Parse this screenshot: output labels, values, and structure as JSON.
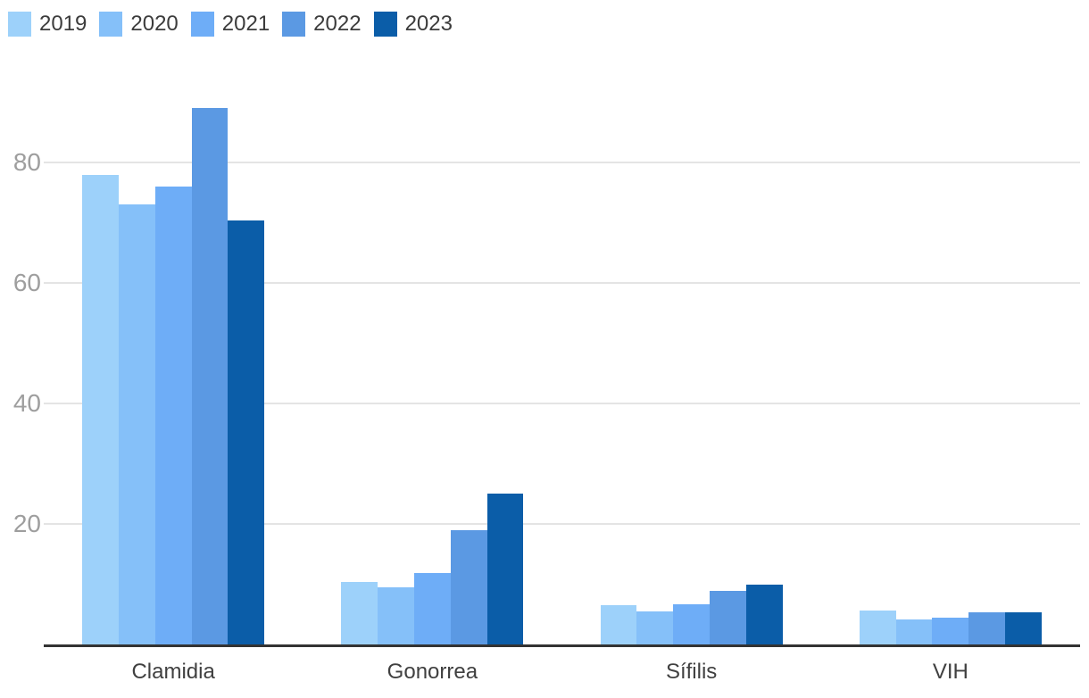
{
  "chart_data": {
    "type": "bar",
    "title": "",
    "xlabel": "",
    "ylabel": "",
    "categories": [
      "Clamidia",
      "Gonorrea",
      "Sífilis",
      "VIH"
    ],
    "series": [
      {
        "name": "2019",
        "color": "#9dd1fa",
        "values": [
          78,
          10.4,
          6.5,
          5.6
        ]
      },
      {
        "name": "2020",
        "color": "#85c0f9",
        "values": [
          73,
          9.5,
          5.5,
          4.1
        ]
      },
      {
        "name": "2021",
        "color": "#6eadf7",
        "values": [
          76,
          11.8,
          6.7,
          4.4
        ]
      },
      {
        "name": "2022",
        "color": "#5b99e3",
        "values": [
          89,
          19,
          8.9,
          5.3
        ]
      },
      {
        "name": "2023",
        "color": "#0b5da8",
        "values": [
          70.3,
          25.1,
          9.9,
          5.4
        ]
      }
    ],
    "y_ticks": [
      20,
      40,
      60,
      80
    ],
    "ylim": [
      0,
      94
    ],
    "grid": true,
    "legend_position": "top-left"
  },
  "colors": {
    "background": "#ffffff",
    "grid": "#e4e4e4",
    "axis_line": "#333333",
    "tick_label": "#9e9e9e",
    "category_label": "#404040",
    "legend_label": "#3c3c3c"
  }
}
